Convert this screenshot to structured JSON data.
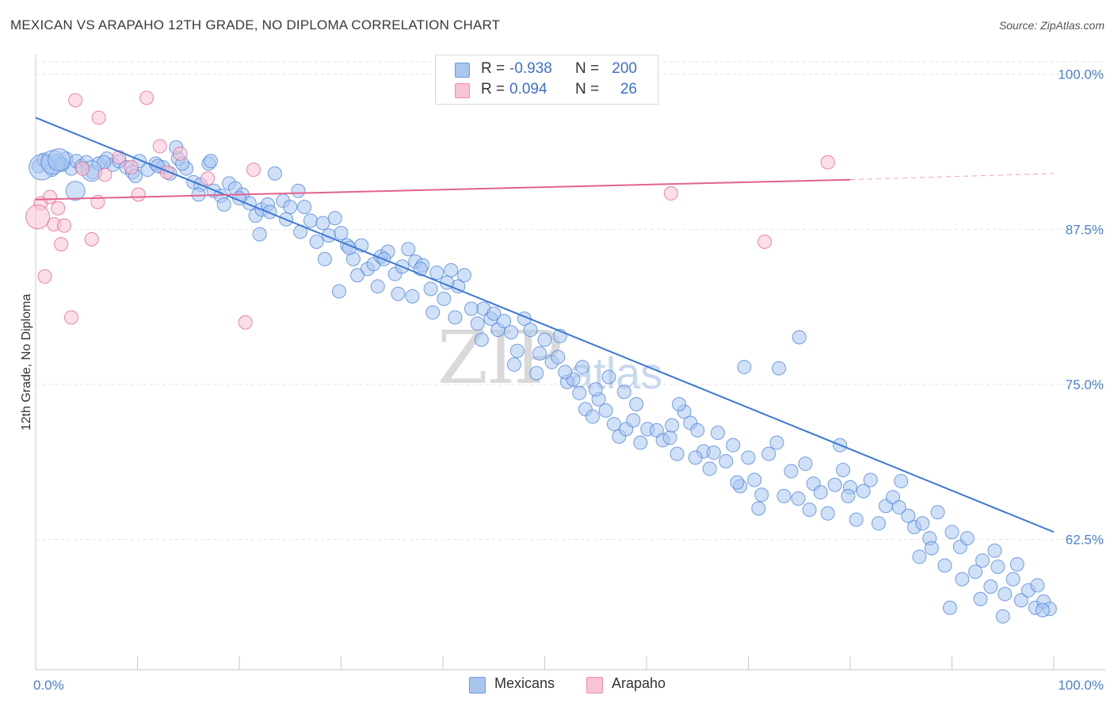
{
  "title": "MEXICAN VS ARAPAHO 12TH GRADE, NO DIPLOMA CORRELATION CHART",
  "source": "Source: ZipAtlas.com",
  "watermark": {
    "zip": "ZIP",
    "atlas": "atlas"
  },
  "legend": {
    "rows": [
      {
        "r_label": "R =",
        "r_value": "-0.938",
        "n_label": "N =",
        "n_value": "200",
        "color": "#a9c6f0",
        "border": "#6f9be0"
      },
      {
        "r_label": "R =",
        "r_value": "0.094",
        "n_label": "N =",
        "n_value": "26",
        "color": "#f8c3d3",
        "border": "#ec8fab"
      }
    ]
  },
  "bottom_legend": [
    {
      "label": "Mexicans",
      "color": "#a9c6f0",
      "border": "#6f9be0"
    },
    {
      "label": "Arapaho",
      "color": "#f8c3d3",
      "border": "#ec8fab"
    }
  ],
  "chart_data": {
    "type": "scatter",
    "title": "MEXICAN VS ARAPAHO 12TH GRADE, NO DIPLOMA CORRELATION CHART",
    "xlabel": "",
    "ylabel": "12th Grade, No Diploma",
    "xlim": [
      0,
      100
    ],
    "ylim": [
      52,
      101
    ],
    "x_tick_labels": [
      "0.0%",
      "100.0%"
    ],
    "y_ticks": [
      62.5,
      75.0,
      87.5,
      100.0
    ],
    "y_tick_labels": [
      "62.5%",
      "75.0%",
      "87.5%",
      "100.0%"
    ],
    "grid": true,
    "series": [
      {
        "name": "Mexicans",
        "color": "#4a82d8",
        "fill": "#a9c6f0",
        "trend": {
          "x": [
            0,
            100
          ],
          "y": [
            96.5,
            63.1
          ]
        },
        "points": [
          [
            0.3,
            92.6
          ],
          [
            0.8,
            93.1
          ],
          [
            1.2,
            92.9
          ],
          [
            1.6,
            92.3
          ],
          [
            2.0,
            93.0
          ],
          [
            2.4,
            92.8
          ],
          [
            3.0,
            93.2
          ],
          [
            3.5,
            92.4
          ],
          [
            4.0,
            93.0
          ],
          [
            4.5,
            92.6
          ],
          [
            5.0,
            92.9
          ],
          [
            5.6,
            92.1
          ],
          [
            6.2,
            92.8
          ],
          [
            7.0,
            93.2
          ],
          [
            7.6,
            92.7
          ],
          [
            8.2,
            93.0
          ],
          [
            8.9,
            92.5
          ],
          [
            9.5,
            92.1
          ],
          [
            10.2,
            93.0
          ],
          [
            11.0,
            92.3
          ],
          [
            11.8,
            92.8
          ],
          [
            12.5,
            92.5
          ],
          [
            13.2,
            92.0
          ],
          [
            14.0,
            93.2
          ],
          [
            14.8,
            92.4
          ],
          [
            15.5,
            91.3
          ],
          [
            16.2,
            91.1
          ],
          [
            17.0,
            92.8
          ],
          [
            17.5,
            90.6
          ],
          [
            18.2,
            90.2
          ],
          [
            19.0,
            91.2
          ],
          [
            19.6,
            90.8
          ],
          [
            20.3,
            90.3
          ],
          [
            21.0,
            89.6
          ],
          [
            21.6,
            88.6
          ],
          [
            22.2,
            89.1
          ],
          [
            22.8,
            89.5
          ],
          [
            23.5,
            92.0
          ],
          [
            24.3,
            89.8
          ],
          [
            25.0,
            89.3
          ],
          [
            25.8,
            90.6
          ],
          [
            26.4,
            89.3
          ],
          [
            27.0,
            88.2
          ],
          [
            27.6,
            86.5
          ],
          [
            28.2,
            88.0
          ],
          [
            28.8,
            87.0
          ],
          [
            29.4,
            88.4
          ],
          [
            30.0,
            87.2
          ],
          [
            30.6,
            86.2
          ],
          [
            31.2,
            85.1
          ],
          [
            32.0,
            86.2
          ],
          [
            32.6,
            84.3
          ],
          [
            33.2,
            84.7
          ],
          [
            33.9,
            85.3
          ],
          [
            34.6,
            85.7
          ],
          [
            35.3,
            83.9
          ],
          [
            36.0,
            84.5
          ],
          [
            36.6,
            85.9
          ],
          [
            37.3,
            84.9
          ],
          [
            38.0,
            84.6
          ],
          [
            38.8,
            82.7
          ],
          [
            39.4,
            84.0
          ],
          [
            40.1,
            81.9
          ],
          [
            40.8,
            84.2
          ],
          [
            41.5,
            82.9
          ],
          [
            42.1,
            83.8
          ],
          [
            42.8,
            81.1
          ],
          [
            43.4,
            79.9
          ],
          [
            44.0,
            81.1
          ],
          [
            44.7,
            80.3
          ],
          [
            45.4,
            79.4
          ],
          [
            46.0,
            80.1
          ],
          [
            46.7,
            79.2
          ],
          [
            47.3,
            77.7
          ],
          [
            48.0,
            80.3
          ],
          [
            48.6,
            79.4
          ],
          [
            49.2,
            75.9
          ],
          [
            50.0,
            78.6
          ],
          [
            50.7,
            76.8
          ],
          [
            51.5,
            78.9
          ],
          [
            52.2,
            75.2
          ],
          [
            52.8,
            75.4
          ],
          [
            53.4,
            74.3
          ],
          [
            54.0,
            73.0
          ],
          [
            54.7,
            72.4
          ],
          [
            55.3,
            73.8
          ],
          [
            56.0,
            72.9
          ],
          [
            56.8,
            71.8
          ],
          [
            57.3,
            70.8
          ],
          [
            58.0,
            71.4
          ],
          [
            58.7,
            72.1
          ],
          [
            59.4,
            70.3
          ],
          [
            60.1,
            71.4
          ],
          [
            61.0,
            71.3
          ],
          [
            61.6,
            70.5
          ],
          [
            62.3,
            70.7
          ],
          [
            63.0,
            69.4
          ],
          [
            63.7,
            72.8
          ],
          [
            64.3,
            71.9
          ],
          [
            65.0,
            71.3
          ],
          [
            65.6,
            69.6
          ],
          [
            66.2,
            68.2
          ],
          [
            67.0,
            71.1
          ],
          [
            67.8,
            68.8
          ],
          [
            68.5,
            70.1
          ],
          [
            69.2,
            66.8
          ],
          [
            70.0,
            69.1
          ],
          [
            70.6,
            67.3
          ],
          [
            71.3,
            66.1
          ],
          [
            72.0,
            69.4
          ],
          [
            72.8,
            70.3
          ],
          [
            73.5,
            66.0
          ],
          [
            74.2,
            68.0
          ],
          [
            74.9,
            65.8
          ],
          [
            75.6,
            68.6
          ],
          [
            76.4,
            67.0
          ],
          [
            77.1,
            66.3
          ],
          [
            77.8,
            64.6
          ],
          [
            78.5,
            66.9
          ],
          [
            79.3,
            68.1
          ],
          [
            80.0,
            66.7
          ],
          [
            80.6,
            64.1
          ],
          [
            81.3,
            66.4
          ],
          [
            82.0,
            67.3
          ],
          [
            82.8,
            63.8
          ],
          [
            83.5,
            65.2
          ],
          [
            84.2,
            65.9
          ],
          [
            85.0,
            67.2
          ],
          [
            85.7,
            64.4
          ],
          [
            86.3,
            63.5
          ],
          [
            87.1,
            63.8
          ],
          [
            87.8,
            62.6
          ],
          [
            88.6,
            64.7
          ],
          [
            89.3,
            60.4
          ],
          [
            90.0,
            63.1
          ],
          [
            90.8,
            61.9
          ],
          [
            91.5,
            62.6
          ],
          [
            92.3,
            59.9
          ],
          [
            93.0,
            60.8
          ],
          [
            93.8,
            58.7
          ],
          [
            94.5,
            60.3
          ],
          [
            95.2,
            58.1
          ],
          [
            96.0,
            59.3
          ],
          [
            96.8,
            57.6
          ],
          [
            97.5,
            58.4
          ],
          [
            98.2,
            57.0
          ],
          [
            99.0,
            57.5
          ],
          [
            99.6,
            56.9
          ],
          [
            13.8,
            94.1
          ],
          [
            17.2,
            93.0
          ],
          [
            24.6,
            88.3
          ],
          [
            30.8,
            86.0
          ],
          [
            34.2,
            85.1
          ],
          [
            37.8,
            84.3
          ],
          [
            40.4,
            83.2
          ],
          [
            45.0,
            80.7
          ],
          [
            51.3,
            77.2
          ],
          [
            53.7,
            76.4
          ],
          [
            55.0,
            74.6
          ],
          [
            57.8,
            74.4
          ],
          [
            62.5,
            71.7
          ],
          [
            66.6,
            69.5
          ],
          [
            68.9,
            67.1
          ],
          [
            71.0,
            65.0
          ],
          [
            76.0,
            64.9
          ],
          [
            79.8,
            66.0
          ],
          [
            84.8,
            65.1
          ],
          [
            88.0,
            61.8
          ],
          [
            91.0,
            59.3
          ],
          [
            94.2,
            61.6
          ],
          [
            96.4,
            60.5
          ],
          [
            98.4,
            58.8
          ],
          [
            2.6,
            92.7
          ],
          [
            6.7,
            92.9
          ],
          [
            9.8,
            91.8
          ],
          [
            12.0,
            92.6
          ],
          [
            14.4,
            92.8
          ],
          [
            16.0,
            90.3
          ],
          [
            18.5,
            89.5
          ],
          [
            20.0,
            90.0
          ],
          [
            22.0,
            87.1
          ],
          [
            23.0,
            88.9
          ],
          [
            26.0,
            87.3
          ],
          [
            28.4,
            85.1
          ],
          [
            29.8,
            82.5
          ],
          [
            31.6,
            83.8
          ],
          [
            33.6,
            82.9
          ],
          [
            35.6,
            82.3
          ],
          [
            37.0,
            82.1
          ],
          [
            39.0,
            80.8
          ],
          [
            41.2,
            80.4
          ],
          [
            43.8,
            78.6
          ],
          [
            47.0,
            76.6
          ],
          [
            49.5,
            77.5
          ],
          [
            52.0,
            76.0
          ],
          [
            56.3,
            75.6
          ],
          [
            59.0,
            73.4
          ],
          [
            63.2,
            73.4
          ],
          [
            64.8,
            69.1
          ],
          [
            69.6,
            76.4
          ],
          [
            73.0,
            76.3
          ],
          [
            75.0,
            78.8
          ],
          [
            79.0,
            70.1
          ],
          [
            86.8,
            61.1
          ],
          [
            89.8,
            57.0
          ],
          [
            92.8,
            57.7
          ],
          [
            95.0,
            56.3
          ],
          [
            98.9,
            56.8
          ]
        ],
        "large_points": [
          [
            0.6,
            92.5,
            16
          ],
          [
            1.7,
            92.9,
            15
          ],
          [
            2.3,
            93.1,
            14
          ],
          [
            3.9,
            90.6,
            12
          ],
          [
            5.5,
            92.2,
            13
          ]
        ]
      },
      {
        "name": "Arapaho",
        "color": "#e2628f",
        "fill": "#f8c3d3",
        "trend": {
          "x": [
            0,
            80,
            100
          ],
          "y": [
            89.9,
            91.5,
            92.0
          ]
        },
        "points": [
          [
            0.5,
            89.6
          ],
          [
            0.9,
            83.7
          ],
          [
            1.4,
            90.1
          ],
          [
            1.8,
            87.9
          ],
          [
            2.2,
            89.2
          ],
          [
            2.5,
            86.3
          ],
          [
            2.8,
            87.8
          ],
          [
            3.5,
            80.4
          ],
          [
            4.6,
            92.4
          ],
          [
            5.5,
            86.7
          ],
          [
            6.1,
            89.7
          ],
          [
            6.8,
            91.9
          ],
          [
            8.2,
            93.3
          ],
          [
            9.4,
            92.5
          ],
          [
            10.9,
            98.1
          ],
          [
            12.9,
            92.1
          ],
          [
            14.2,
            93.6
          ],
          [
            16.9,
            91.6
          ],
          [
            20.6,
            80.0
          ],
          [
            21.4,
            92.3
          ],
          [
            62.4,
            90.4
          ],
          [
            71.6,
            86.5
          ],
          [
            77.8,
            92.9
          ],
          [
            3.9,
            97.9
          ],
          [
            6.2,
            96.5
          ],
          [
            12.2,
            94.2
          ],
          [
            10.1,
            90.3
          ]
        ],
        "large_points": [
          [
            0.2,
            88.5,
            15
          ]
        ]
      }
    ]
  }
}
